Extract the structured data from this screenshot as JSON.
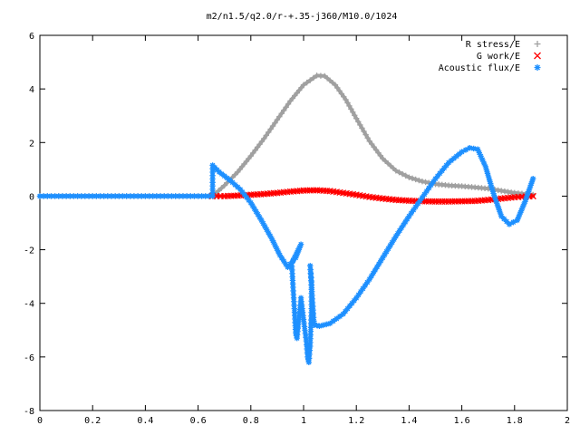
{
  "chart_data": {
    "type": "scatter",
    "title": "m2/n1.5/q2.0/r-+.35-j360/M10.0/1024",
    "xlabel": "",
    "ylabel": "",
    "xlim": [
      0,
      2
    ],
    "ylim": [
      -8,
      6
    ],
    "x_ticks": [
      "0",
      "0.2",
      "0.4",
      "0.6",
      "0.8",
      "1",
      "1.2",
      "1.4",
      "1.6",
      "1.8",
      "2"
    ],
    "y_ticks": [
      "-8",
      "-6",
      "-4",
      "-2",
      "0",
      "2",
      "4",
      "6"
    ],
    "grid": false,
    "legend_position": "top-right",
    "series": [
      {
        "name": "R stress/E",
        "marker": "+",
        "color": "#a0a0a0",
        "points": [
          [
            0.0,
            0.0
          ],
          [
            0.1,
            0.0
          ],
          [
            0.2,
            0.0
          ],
          [
            0.3,
            0.0
          ],
          [
            0.4,
            0.0
          ],
          [
            0.5,
            0.0
          ],
          [
            0.6,
            0.0
          ],
          [
            0.655,
            0.0
          ],
          [
            0.7,
            0.4
          ],
          [
            0.75,
            0.9
          ],
          [
            0.8,
            1.5
          ],
          [
            0.85,
            2.15
          ],
          [
            0.9,
            2.85
          ],
          [
            0.95,
            3.55
          ],
          [
            1.0,
            4.15
          ],
          [
            1.05,
            4.5
          ],
          [
            1.08,
            4.48
          ],
          [
            1.12,
            4.15
          ],
          [
            1.16,
            3.6
          ],
          [
            1.2,
            2.9
          ],
          [
            1.25,
            2.05
          ],
          [
            1.3,
            1.4
          ],
          [
            1.35,
            0.95
          ],
          [
            1.4,
            0.7
          ],
          [
            1.45,
            0.55
          ],
          [
            1.5,
            0.45
          ],
          [
            1.55,
            0.4
          ],
          [
            1.6,
            0.37
          ],
          [
            1.65,
            0.33
          ],
          [
            1.7,
            0.28
          ],
          [
            1.75,
            0.2
          ],
          [
            1.8,
            0.12
          ],
          [
            1.87,
            0.05
          ]
        ]
      },
      {
        "name": "G work/E",
        "marker": "x",
        "color": "#ff0000",
        "points": [
          [
            0.655,
            0.0
          ],
          [
            0.7,
            0.0
          ],
          [
            0.75,
            0.02
          ],
          [
            0.8,
            0.05
          ],
          [
            0.85,
            0.08
          ],
          [
            0.9,
            0.12
          ],
          [
            0.95,
            0.17
          ],
          [
            1.0,
            0.21
          ],
          [
            1.05,
            0.22
          ],
          [
            1.1,
            0.19
          ],
          [
            1.15,
            0.12
          ],
          [
            1.2,
            0.05
          ],
          [
            1.25,
            -0.03
          ],
          [
            1.3,
            -0.09
          ],
          [
            1.35,
            -0.14
          ],
          [
            1.4,
            -0.17
          ],
          [
            1.45,
            -0.19
          ],
          [
            1.5,
            -0.2
          ],
          [
            1.55,
            -0.2
          ],
          [
            1.6,
            -0.19
          ],
          [
            1.65,
            -0.18
          ],
          [
            1.7,
            -0.14
          ],
          [
            1.75,
            -0.09
          ],
          [
            1.8,
            -0.04
          ],
          [
            1.87,
            0.0
          ]
        ]
      },
      {
        "name": "Acoustic flux/E",
        "marker": "*",
        "color": "#1e90ff",
        "points": [
          [
            0.0,
            0.0
          ],
          [
            0.1,
            0.0
          ],
          [
            0.2,
            0.0
          ],
          [
            0.3,
            0.0
          ],
          [
            0.4,
            0.0
          ],
          [
            0.5,
            0.0
          ],
          [
            0.6,
            0.0
          ],
          [
            0.655,
            0.0
          ],
          [
            0.655,
            1.15
          ],
          [
            0.68,
            0.9
          ],
          [
            0.72,
            0.6
          ],
          [
            0.76,
            0.25
          ],
          [
            0.8,
            -0.25
          ],
          [
            0.84,
            -0.9
          ],
          [
            0.88,
            -1.6
          ],
          [
            0.91,
            -2.2
          ],
          [
            0.94,
            -2.65
          ],
          [
            0.97,
            -2.3
          ],
          [
            0.99,
            -1.8
          ],
          [
            0.955,
            -2.5
          ],
          [
            0.96,
            -3.4
          ],
          [
            0.965,
            -4.2
          ],
          [
            0.97,
            -5.1
          ],
          [
            0.975,
            -5.3
          ],
          [
            0.98,
            -4.8
          ],
          [
            0.99,
            -3.8
          ],
          [
            1.0,
            -4.6
          ],
          [
            1.01,
            -5.4
          ],
          [
            1.015,
            -6.0
          ],
          [
            1.02,
            -6.2
          ],
          [
            1.025,
            -5.6
          ],
          [
            1.03,
            -4.2
          ],
          [
            1.03,
            -3.2
          ],
          [
            1.025,
            -2.6
          ],
          [
            1.04,
            -4.8
          ],
          [
            1.06,
            -4.85
          ],
          [
            1.1,
            -4.75
          ],
          [
            1.15,
            -4.4
          ],
          [
            1.2,
            -3.8
          ],
          [
            1.25,
            -3.1
          ],
          [
            1.3,
            -2.3
          ],
          [
            1.35,
            -1.5
          ],
          [
            1.4,
            -0.75
          ],
          [
            1.45,
            -0.05
          ],
          [
            1.5,
            0.65
          ],
          [
            1.55,
            1.25
          ],
          [
            1.6,
            1.65
          ],
          [
            1.63,
            1.8
          ],
          [
            1.66,
            1.75
          ],
          [
            1.69,
            1.1
          ],
          [
            1.72,
            0.1
          ],
          [
            1.75,
            -0.75
          ],
          [
            1.78,
            -1.05
          ],
          [
            1.81,
            -0.9
          ],
          [
            1.84,
            -0.2
          ],
          [
            1.87,
            0.65
          ]
        ]
      }
    ]
  }
}
